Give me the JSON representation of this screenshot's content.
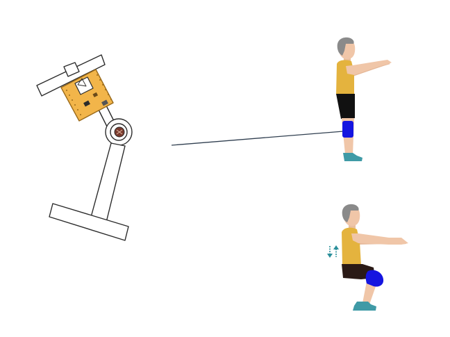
{
  "device": {
    "name": "knee-angle-sensor-sketch",
    "colors": {
      "outline": "#2b2b2b",
      "board": "#f2b54a",
      "board_outline": "#9a6a1a",
      "sensor_dot": "#7a3b2e",
      "strap_fill": "#ffffff"
    }
  },
  "connector": {
    "color": "#2f3e4f"
  },
  "figures": [
    {
      "pose": "standing",
      "colors": {
        "hair": "#8a8a8a",
        "skin": "#f0c6a8",
        "shirt": "#e4b33e",
        "shorts": "#111111",
        "knee_brace": "#1515e0",
        "shoe": "#3f9aa6"
      }
    },
    {
      "pose": "squatting",
      "colors": {
        "hair": "#8a8a8a",
        "skin": "#f0c6a8",
        "shirt": "#e4b33e",
        "shorts": "#2a1a16",
        "knee_brace": "#1515e0",
        "shoe": "#3f9aa6"
      },
      "motion_indicator": {
        "icon": "up-down-arrows-icon",
        "color": "#2a8f9a"
      }
    }
  ]
}
